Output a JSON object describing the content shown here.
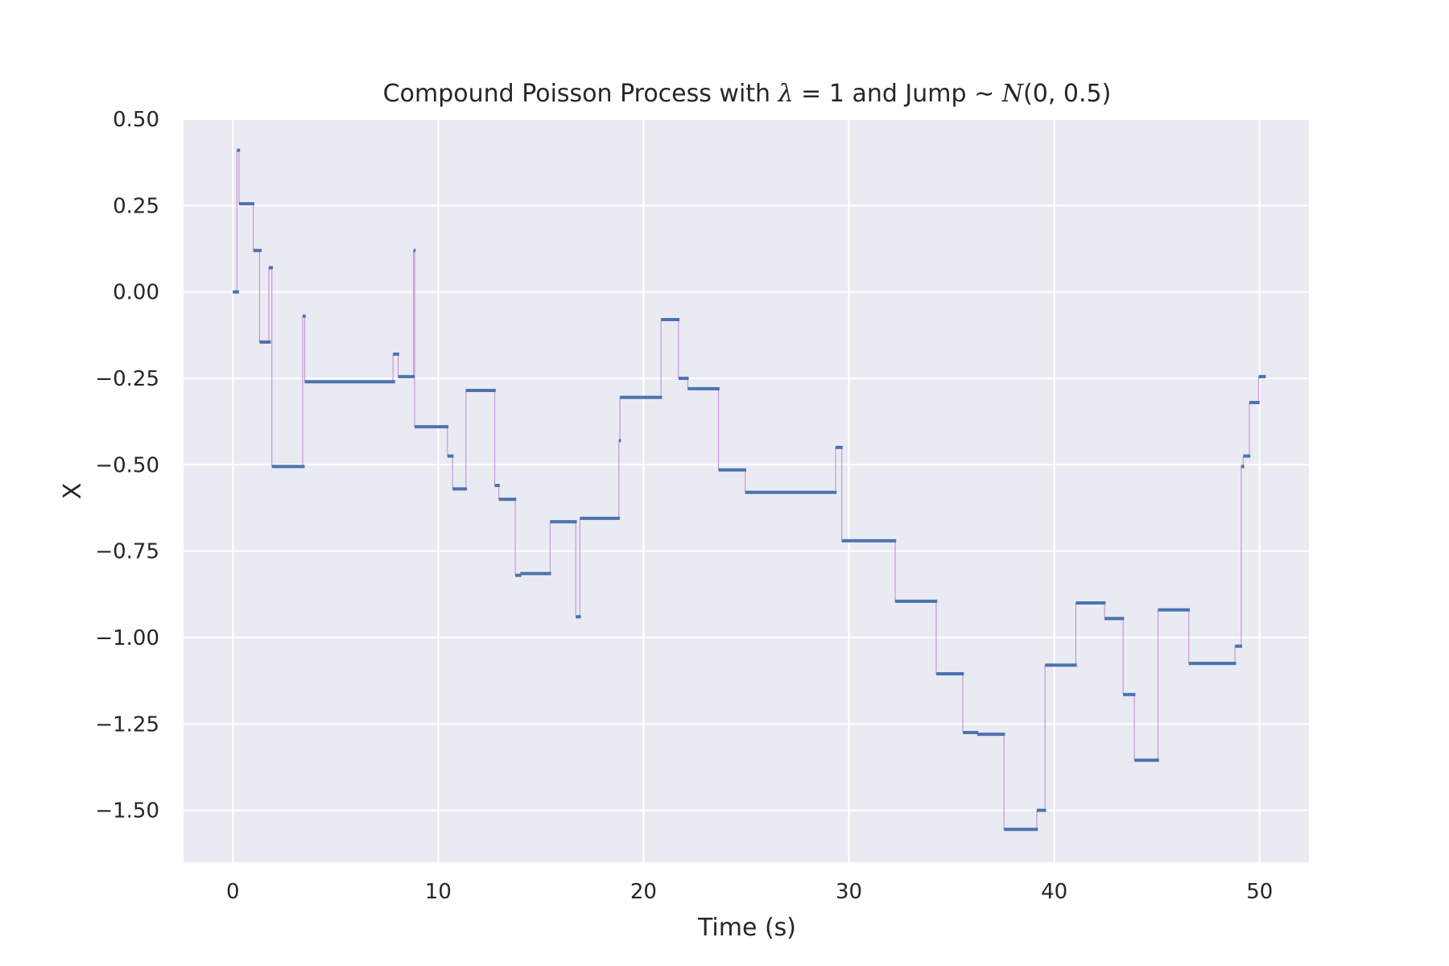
{
  "chart_data": {
    "type": "line",
    "style": "step",
    "title": {
      "prefix": "Compound Poisson Process with ",
      "lambda_symbol": "λ",
      "equals_one": " = 1",
      "middle": " and Jump ∼ ",
      "dist_symbol": "N",
      "dist_params": "(0, 0.5)"
    },
    "xlabel": "Time (s)",
    "ylabel": "X",
    "xlim": [
      -2.4,
      52.4
    ],
    "ylim": [
      -1.65,
      0.5
    ],
    "xticks": [
      0,
      10,
      20,
      30,
      40,
      50
    ],
    "xtick_labels": [
      "0",
      "10",
      "20",
      "30",
      "40",
      "50"
    ],
    "yticks": [
      0.5,
      0.25,
      0.0,
      -0.25,
      -0.5,
      -0.75,
      -1.0,
      -1.25,
      -1.5
    ],
    "ytick_labels": [
      "0.50",
      "0.25",
      "0.00",
      "−0.25",
      "−0.50",
      "−0.75",
      "−1.00",
      "−1.25",
      "−1.50"
    ],
    "grid": true,
    "colors": {
      "background": "#eaeaf2",
      "grid": "#ffffff",
      "steps": "#4c72b0",
      "jumps": "#c39bd3"
    },
    "series": [
      {
        "segments": [
          {
            "x0": 0.0,
            "x1": 0.3,
            "y": 0.0
          },
          {
            "x0": 0.2,
            "x1": 0.35,
            "y": 0.41
          },
          {
            "x0": 0.3,
            "x1": 1.05,
            "y": 0.255
          },
          {
            "x0": 1.0,
            "x1": 1.4,
            "y": 0.12
          },
          {
            "x0": 1.3,
            "x1": 1.85,
            "y": -0.145
          },
          {
            "x0": 1.75,
            "x1": 1.95,
            "y": 0.07
          },
          {
            "x0": 1.9,
            "x1": 3.5,
            "y": -0.505
          },
          {
            "x0": 3.4,
            "x1": 3.55,
            "y": -0.07
          },
          {
            "x0": 3.5,
            "x1": 7.9,
            "y": -0.26
          },
          {
            "x0": 7.8,
            "x1": 8.1,
            "y": -0.18
          },
          {
            "x0": 8.05,
            "x1": 8.85,
            "y": -0.245
          },
          {
            "x0": 8.8,
            "x1": 8.9,
            "y": 0.12
          },
          {
            "x0": 8.85,
            "x1": 10.5,
            "y": -0.39
          },
          {
            "x0": 10.45,
            "x1": 10.75,
            "y": -0.475
          },
          {
            "x0": 10.7,
            "x1": 11.4,
            "y": -0.57
          },
          {
            "x0": 11.35,
            "x1": 12.8,
            "y": -0.285
          },
          {
            "x0": 12.75,
            "x1": 13.0,
            "y": -0.56
          },
          {
            "x0": 12.95,
            "x1": 13.8,
            "y": -0.6
          },
          {
            "x0": 13.75,
            "x1": 14.05,
            "y": -0.82
          },
          {
            "x0": 14.0,
            "x1": 15.5,
            "y": -0.815
          },
          {
            "x0": 15.45,
            "x1": 16.75,
            "y": -0.665
          },
          {
            "x0": 16.7,
            "x1": 16.95,
            "y": -0.94
          },
          {
            "x0": 16.9,
            "x1": 18.85,
            "y": -0.655
          },
          {
            "x0": 18.8,
            "x1": 18.9,
            "y": -0.43
          },
          {
            "x0": 18.85,
            "x1": 20.9,
            "y": -0.305
          },
          {
            "x0": 20.85,
            "x1": 21.75,
            "y": -0.08
          },
          {
            "x0": 21.7,
            "x1": 22.2,
            "y": -0.25
          },
          {
            "x0": 22.15,
            "x1": 23.7,
            "y": -0.28
          },
          {
            "x0": 23.65,
            "x1": 25.0,
            "y": -0.515
          },
          {
            "x0": 24.95,
            "x1": 29.4,
            "y": -0.58
          },
          {
            "x0": 29.35,
            "x1": 29.7,
            "y": -0.45
          },
          {
            "x0": 29.65,
            "x1": 32.3,
            "y": -0.72
          },
          {
            "x0": 32.25,
            "x1": 34.3,
            "y": -0.895
          },
          {
            "x0": 34.25,
            "x1": 35.6,
            "y": -1.105
          },
          {
            "x0": 35.55,
            "x1": 36.3,
            "y": -1.275
          },
          {
            "x0": 36.25,
            "x1": 37.6,
            "y": -1.28
          },
          {
            "x0": 37.55,
            "x1": 39.2,
            "y": -1.555
          },
          {
            "x0": 39.15,
            "x1": 39.6,
            "y": -1.5
          },
          {
            "x0": 39.55,
            "x1": 41.1,
            "y": -1.08
          },
          {
            "x0": 41.05,
            "x1": 42.5,
            "y": -0.9
          },
          {
            "x0": 42.45,
            "x1": 43.4,
            "y": -0.945
          },
          {
            "x0": 43.35,
            "x1": 43.95,
            "y": -1.165
          },
          {
            "x0": 43.9,
            "x1": 45.1,
            "y": -1.355
          },
          {
            "x0": 45.05,
            "x1": 46.6,
            "y": -0.92
          },
          {
            "x0": 46.55,
            "x1": 48.85,
            "y": -1.075
          },
          {
            "x0": 48.8,
            "x1": 49.15,
            "y": -1.025
          },
          {
            "x0": 49.1,
            "x1": 49.25,
            "y": -0.505
          },
          {
            "x0": 49.2,
            "x1": 49.55,
            "y": -0.475
          },
          {
            "x0": 49.5,
            "x1": 50.0,
            "y": -0.32
          },
          {
            "x0": 49.95,
            "x1": 50.3,
            "y": -0.245
          }
        ]
      }
    ]
  }
}
